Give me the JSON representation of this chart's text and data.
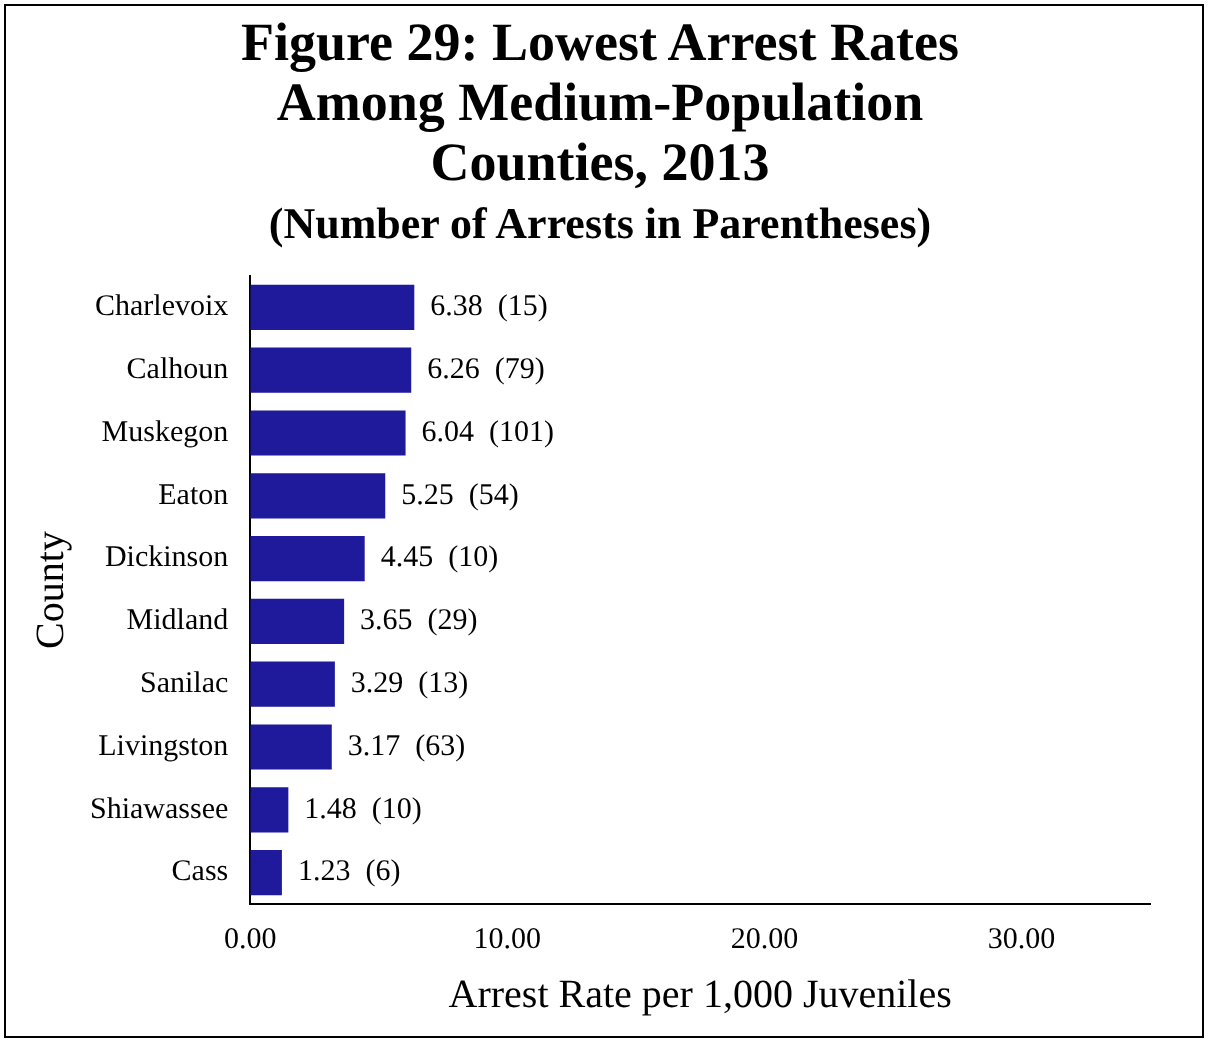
{
  "chart_data": {
    "type": "bar",
    "orientation": "horizontal",
    "title": "Figure 29: Lowest Arrest Rates Among Medium-Population Counties, 2013",
    "subtitle": "(Number of Arrests in Parentheses)",
    "xlabel": "Arrest Rate per 1,000 Juveniles",
    "ylabel": "County",
    "categories": [
      "Charlevoix",
      "Calhoun",
      "Muskegon",
      "Eaton",
      "Dickinson",
      "Midland",
      "Sanilac",
      "Livingston",
      "Shiawassee",
      "Cass"
    ],
    "values": [
      6.38,
      6.26,
      6.04,
      5.25,
      4.45,
      3.65,
      3.29,
      3.17,
      1.48,
      1.23
    ],
    "value_labels": [
      "6.38  (15)",
      "6.26  (79)",
      "6.04  (101)",
      "5.25  (54)",
      "4.45  (10)",
      "3.65  (29)",
      "3.29  (13)",
      "3.17  (63)",
      "1.48  (10)",
      "1.23  (6)"
    ],
    "color": "#1f1a9c",
    "xlim": [
      0,
      35
    ],
    "xticks": [
      {
        "value": 0,
        "label": "0.00"
      },
      {
        "value": 10,
        "label": "10.00"
      },
      {
        "value": 20,
        "label": "20.00"
      },
      {
        "value": 30,
        "label": "30.00"
      }
    ],
    "grid": false,
    "legend": false
  }
}
